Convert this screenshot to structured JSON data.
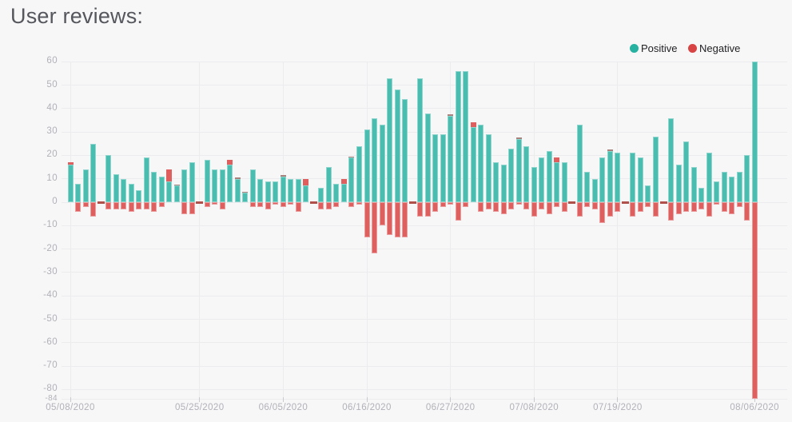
{
  "title": "User reviews:",
  "legend": {
    "items": [
      {
        "label": "Positive",
        "color": "#27b1a1"
      },
      {
        "label": "Negative",
        "color": "#d84343"
      }
    ]
  },
  "colors": {
    "background": "#f7f7f8",
    "positive_bar": "#49bdaf",
    "negative_bar": "#df5f5f",
    "zero_dash": "#b0504b",
    "thin_cap": "#a8837e",
    "grid": "#ececee",
    "axis_text": "#b1b1b8",
    "title_text": "#55575d"
  },
  "chart_data": {
    "type": "bar",
    "title": "User reviews:",
    "ylabel": "",
    "xlabel": "",
    "ylim": [
      -84,
      60
    ],
    "grid": true,
    "legend_position": "top-right",
    "yticks": [
      60,
      50,
      40,
      30,
      20,
      10,
      0,
      -10,
      -20,
      -30,
      -40,
      -50,
      -60,
      -70,
      -80
    ],
    "y_min_tick": -84,
    "xtick_labels": [
      "05/08/2020",
      "05/25/2020",
      "06/05/2020",
      "06/16/2020",
      "06/27/2020",
      "07/08/2020",
      "07/19/2020",
      "08/06/2020"
    ],
    "xtick_day_indices": [
      0,
      17,
      28,
      39,
      50,
      61,
      72,
      90
    ],
    "categories": [
      "05/08/2020",
      "05/09/2020",
      "05/10/2020",
      "05/11/2020",
      "05/12/2020",
      "05/13/2020",
      "05/14/2020",
      "05/15/2020",
      "05/16/2020",
      "05/17/2020",
      "05/18/2020",
      "05/19/2020",
      "05/20/2020",
      "05/21/2020",
      "05/22/2020",
      "05/23/2020",
      "05/24/2020",
      "05/25/2020",
      "05/26/2020",
      "05/27/2020",
      "05/28/2020",
      "05/29/2020",
      "05/30/2020",
      "05/31/2020",
      "06/01/2020",
      "06/02/2020",
      "06/03/2020",
      "06/04/2020",
      "06/05/2020",
      "06/06/2020",
      "06/07/2020",
      "06/08/2020",
      "06/09/2020",
      "06/10/2020",
      "06/11/2020",
      "06/12/2020",
      "06/13/2020",
      "06/14/2020",
      "06/15/2020",
      "06/16/2020",
      "06/17/2020",
      "06/18/2020",
      "06/19/2020",
      "06/20/2020",
      "06/21/2020",
      "06/22/2020",
      "06/23/2020",
      "06/24/2020",
      "06/25/2020",
      "06/26/2020",
      "06/27/2020",
      "06/28/2020",
      "06/29/2020",
      "06/30/2020",
      "07/01/2020",
      "07/02/2020",
      "07/03/2020",
      "07/04/2020",
      "07/05/2020",
      "07/06/2020",
      "07/07/2020",
      "07/08/2020",
      "07/09/2020",
      "07/10/2020",
      "07/11/2020",
      "07/12/2020",
      "07/13/2020",
      "07/14/2020",
      "07/15/2020",
      "07/16/2020",
      "07/17/2020",
      "07/18/2020",
      "07/19/2020",
      "07/20/2020",
      "07/21/2020",
      "07/22/2020",
      "07/23/2020",
      "07/24/2020",
      "07/25/2020",
      "07/26/2020",
      "07/27/2020",
      "07/28/2020",
      "07/29/2020",
      "07/30/2020",
      "07/31/2020",
      "08/01/2020",
      "08/02/2020",
      "08/03/2020",
      "08/04/2020",
      "08/05/2020",
      "08/06/2020"
    ],
    "series": [
      {
        "name": "Positive",
        "color": "#49bdaf",
        "values": [
          16,
          8,
          14,
          25,
          0,
          20,
          12,
          10,
          8,
          5,
          19,
          13,
          11,
          9,
          7,
          14,
          17,
          0,
          18,
          14,
          14,
          16,
          10,
          4,
          14,
          10,
          9,
          9,
          11,
          10,
          10,
          7,
          0,
          6,
          15,
          8,
          8,
          19,
          24,
          31,
          36,
          33,
          53,
          48,
          44,
          0,
          53,
          38,
          29,
          29,
          37,
          56,
          56,
          32,
          33,
          29,
          17,
          16,
          23,
          27,
          24,
          15,
          19,
          22,
          17,
          17,
          0,
          33,
          13,
          10,
          19,
          22,
          21,
          0,
          21,
          19,
          7,
          28,
          0,
          36,
          16,
          26,
          15,
          6,
          21,
          9,
          13,
          11,
          13,
          20,
          60
        ]
      },
      {
        "name": "Negative",
        "color": "#df5f5f",
        "values": [
          0,
          -4,
          -2,
          -6,
          -1,
          -3,
          -3,
          -3,
          -4,
          -3,
          -3,
          -4,
          -2,
          0,
          0,
          -5,
          -5,
          -1,
          -2,
          -1,
          -3,
          0,
          0,
          0,
          -2,
          -2,
          -3,
          -1,
          -2,
          -1,
          -4,
          0,
          -1,
          -3,
          -3,
          -2,
          0,
          -2,
          -1,
          -15,
          -22,
          -10,
          -14,
          -15,
          -15,
          -1,
          -6,
          -6,
          -4,
          -2,
          -1,
          -8,
          -2,
          0,
          -4,
          -3,
          -4,
          -5,
          -3,
          -1,
          -3,
          -6,
          -3,
          -5,
          -2,
          -4,
          -1,
          -6,
          -2,
          -3,
          -9,
          -6,
          -4,
          -1,
          -6,
          -4,
          -2,
          -6,
          -1,
          -8,
          -5,
          -4,
          -4,
          -3,
          -6,
          -1,
          -4,
          -5,
          -2,
          -8,
          -84
        ]
      }
    ],
    "overlay_red_caps": [
      {
        "day": 0,
        "from": 16,
        "to": 17,
        "thin": false
      },
      {
        "day": 13,
        "from": 9,
        "to": 14,
        "thin": false
      },
      {
        "day": 14,
        "from": 7,
        "to": 7.5,
        "thin": true
      },
      {
        "day": 21,
        "from": 16,
        "to": 18,
        "thin": false
      },
      {
        "day": 22,
        "from": 10,
        "to": 10.5,
        "thin": true
      },
      {
        "day": 23,
        "from": 4,
        "to": 4.5,
        "thin": true
      },
      {
        "day": 28,
        "from": 11,
        "to": 11.5,
        "thin": true
      },
      {
        "day": 31,
        "from": 7,
        "to": 10,
        "thin": false
      },
      {
        "day": 36,
        "from": 8,
        "to": 10,
        "thin": false
      },
      {
        "day": 37,
        "from": 19,
        "to": 19.5,
        "thin": true
      },
      {
        "day": 50,
        "from": 37,
        "to": 37.5,
        "thin": true
      },
      {
        "day": 53,
        "from": 32,
        "to": 34,
        "thin": false
      },
      {
        "day": 59,
        "from": 27,
        "to": 27.5,
        "thin": true
      },
      {
        "day": 64,
        "from": 17,
        "to": 19,
        "thin": false
      },
      {
        "day": 71,
        "from": 22,
        "to": 22.5,
        "thin": true
      }
    ],
    "zero_dash_days": [
      4,
      17,
      32,
      45,
      66,
      73,
      78
    ]
  }
}
